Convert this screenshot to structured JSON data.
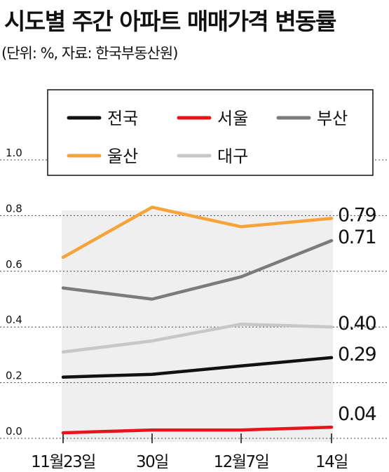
{
  "title": "시도별 주간 아파트 매매가격 변동률",
  "subtitle": "(단위: %, 자료: 한국부동산원)",
  "chart_data": {
    "type": "line",
    "categories": [
      "11월23일",
      "30일",
      "12월7일",
      "14일"
    ],
    "ylim": [
      0.0,
      1.0
    ],
    "yticks": [
      "0.0",
      "0.2",
      "0.4",
      "0.6",
      "0.8",
      "1.0"
    ],
    "grid": true,
    "legend_position": "top",
    "series": [
      {
        "name": "전국",
        "color": "#111111",
        "values": [
          0.22,
          0.23,
          0.26,
          0.29
        ],
        "end_label": "0.29"
      },
      {
        "name": "서울",
        "color": "#e8141c",
        "values": [
          0.02,
          0.03,
          0.03,
          0.04
        ],
        "end_label": "0.04"
      },
      {
        "name": "부산",
        "color": "#7b7b7b",
        "values": [
          0.54,
          0.5,
          0.58,
          0.71
        ],
        "end_label": "0.71"
      },
      {
        "name": "울산",
        "color": "#f6a43a",
        "values": [
          0.65,
          0.83,
          0.76,
          0.79
        ],
        "end_label": "0.79"
      },
      {
        "name": "대구",
        "color": "#c7c7c7",
        "values": [
          0.31,
          0.35,
          0.41,
          0.4
        ],
        "end_label": "0.40"
      }
    ]
  }
}
